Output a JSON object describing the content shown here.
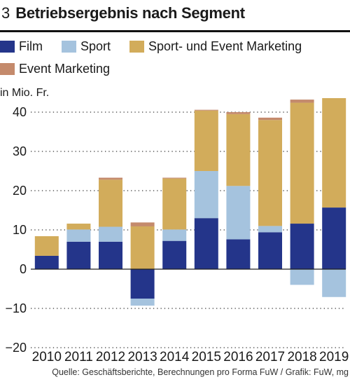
{
  "header": {
    "number": "3",
    "title": "Betriebsergebnis nach Segment"
  },
  "legend": [
    {
      "label": "Film",
      "color": "#24358a"
    },
    {
      "label": "Sport",
      "color": "#a5c3de"
    },
    {
      "label": "Sport- und Event Marketing",
      "color": "#d2ac5b"
    },
    {
      "label": "Event Marketing",
      "color": "#c48a6c"
    }
  ],
  "unit_label": "in Mio. Fr.",
  "source": "Quelle: Geschäftsberichte, Berechnungen pro Forma FuW / Grafik: FuW, mg",
  "chart_data": {
    "type": "bar",
    "stacked": true,
    "categories": [
      "2010",
      "2011",
      "2012",
      "2013",
      "2014",
      "2015",
      "2016",
      "2017",
      "2018",
      "2019"
    ],
    "ylim": [
      -20,
      45
    ],
    "yticks": [
      40,
      30,
      20,
      10,
      0,
      -10,
      -20
    ],
    "grid": true,
    "legend_position": "top",
    "series": [
      {
        "name": "Film",
        "color": "#24358a",
        "values": [
          3.4,
          7.0,
          7.0,
          -7.5,
          7.2,
          13.0,
          7.6,
          9.4,
          11.6,
          15.7
        ]
      },
      {
        "name": "Sport",
        "color": "#a5c3de",
        "values": [
          0,
          3.1,
          3.8,
          -1.8,
          2.9,
          12.0,
          13.6,
          1.6,
          -4.0,
          -7.1
        ]
      },
      {
        "name": "Sport- und Event Marketing",
        "color": "#d2ac5b",
        "values": [
          5.0,
          1.5,
          12.0,
          10.9,
          13.0,
          15.4,
          18.3,
          27.0,
          30.8,
          27.9
        ]
      },
      {
        "name": "Event Marketing",
        "color": "#c48a6c",
        "values": [
          0,
          0,
          0.5,
          1.0,
          0.2,
          0.2,
          0.5,
          0.6,
          0.8,
          0.9
        ]
      }
    ]
  }
}
